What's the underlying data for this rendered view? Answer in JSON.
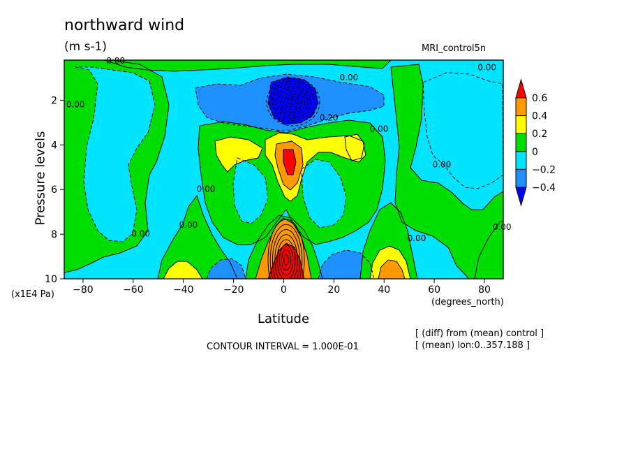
{
  "chart_data": {
    "type": "heatmap",
    "title": "northward wind",
    "units": "(m s-1)",
    "dataset": "MRI_control5n",
    "xlabel": "Latitude",
    "x_unit": "(degrees_north)",
    "ylabel": "Pressure levels",
    "y_unit": "(x1E4 Pa)",
    "xlim": [
      -87.5,
      87.5
    ],
    "ylim": [
      10,
      0.2
    ],
    "x_ticks": [
      -80,
      -60,
      -40,
      -20,
      0,
      20,
      40,
      60,
      80
    ],
    "y_ticks": [
      2,
      4,
      6,
      8,
      10
    ],
    "contour_interval": "CONTOUR INTERVAL = 1.000E-01",
    "notes": [
      "[ (diff) from (mean) control ]",
      "[ (mean) lon:0..357.188 ]"
    ],
    "colorbar": {
      "levels": [
        0.6,
        0.4,
        0.2,
        0,
        -0.2,
        -0.4
      ],
      "bands": [
        {
          "from": 0.6,
          "to": null,
          "color": "#ff0000"
        },
        {
          "from": 0.4,
          "to": 0.6,
          "color": "#ff9900"
        },
        {
          "from": 0.2,
          "to": 0.4,
          "color": "#ffff00"
        },
        {
          "from": 0.0,
          "to": 0.2,
          "color": "#00dd00"
        },
        {
          "from": -0.2,
          "to": 0.0,
          "color": "#00e5ff"
        },
        {
          "from": -0.4,
          "to": -0.2,
          "color": "#1e90ff"
        },
        {
          "from": null,
          "to": -0.4,
          "color": "#0000ff"
        }
      ]
    },
    "contour_labels": [
      {
        "text": "0.00",
        "x": -67,
        "y": 0.25
      },
      {
        "text": "0.00",
        "x": 26,
        "y": 1.0
      },
      {
        "text": "0.00",
        "x": 81,
        "y": 0.55
      },
      {
        "text": "0.00",
        "x": -83,
        "y": 2.2
      },
      {
        "text": "0.20",
        "x": 18,
        "y": 2.8
      },
      {
        "text": "0.00",
        "x": 38,
        "y": 3.3
      },
      {
        "text": "0.00",
        "x": 63,
        "y": 4.9
      },
      {
        "text": "0.00",
        "x": -31,
        "y": 6.0
      },
      {
        "text": "0.00",
        "x": -38,
        "y": 7.6
      },
      {
        "text": "0.00",
        "x": -57,
        "y": 8.0
      },
      {
        "text": "0.00",
        "x": 53,
        "y": 8.2
      },
      {
        "text": "0.00",
        "x": 87,
        "y": 7.7
      }
    ],
    "regions": [
      {
        "id": "bg",
        "value": -0.1
      },
      {
        "id": "sh-green-polar",
        "value": 0.1
      },
      {
        "id": "sh-cyan-tongue",
        "value": -0.1
      },
      {
        "id": "nh-green-band",
        "value": 0.1
      },
      {
        "id": "nh-cyan-polar",
        "value": -0.1
      },
      {
        "id": "top-green",
        "value": 0.1
      },
      {
        "id": "strat-blue",
        "value": -0.3
      },
      {
        "id": "strat-deep-blue",
        "value": -0.5
      },
      {
        "id": "trop-green",
        "value": 0.1
      },
      {
        "id": "cyan-hole-left",
        "value": -0.1
      },
      {
        "id": "cyan-hole-right",
        "value": -0.1
      },
      {
        "id": "yellow-left",
        "value": 0.3
      },
      {
        "id": "yellow-center",
        "value": 0.3
      },
      {
        "id": "yellow-right",
        "value": 0.3
      },
      {
        "id": "orange-center",
        "value": 0.5
      },
      {
        "id": "red-center",
        "value": 0.7
      },
      {
        "id": "sfc-green-left",
        "value": 0.1
      },
      {
        "id": "sfc-yellow-left",
        "value": 0.3
      },
      {
        "id": "sfc-blue-left",
        "value": -0.3
      },
      {
        "id": "sfc-green-center",
        "value": 0.1
      },
      {
        "id": "sfc-orange-center",
        "value": 0.5
      },
      {
        "id": "sfc-red-center",
        "value": 0.7
      },
      {
        "id": "sfc-blue-right",
        "value": -0.3
      },
      {
        "id": "sfc-green-right",
        "value": 0.1
      },
      {
        "id": "sfc-yellow-right",
        "value": 0.3
      },
      {
        "id": "sfc-orange-right",
        "value": 0.5
      },
      {
        "id": "nh-green-right-sfc",
        "value": 0.1
      }
    ]
  }
}
